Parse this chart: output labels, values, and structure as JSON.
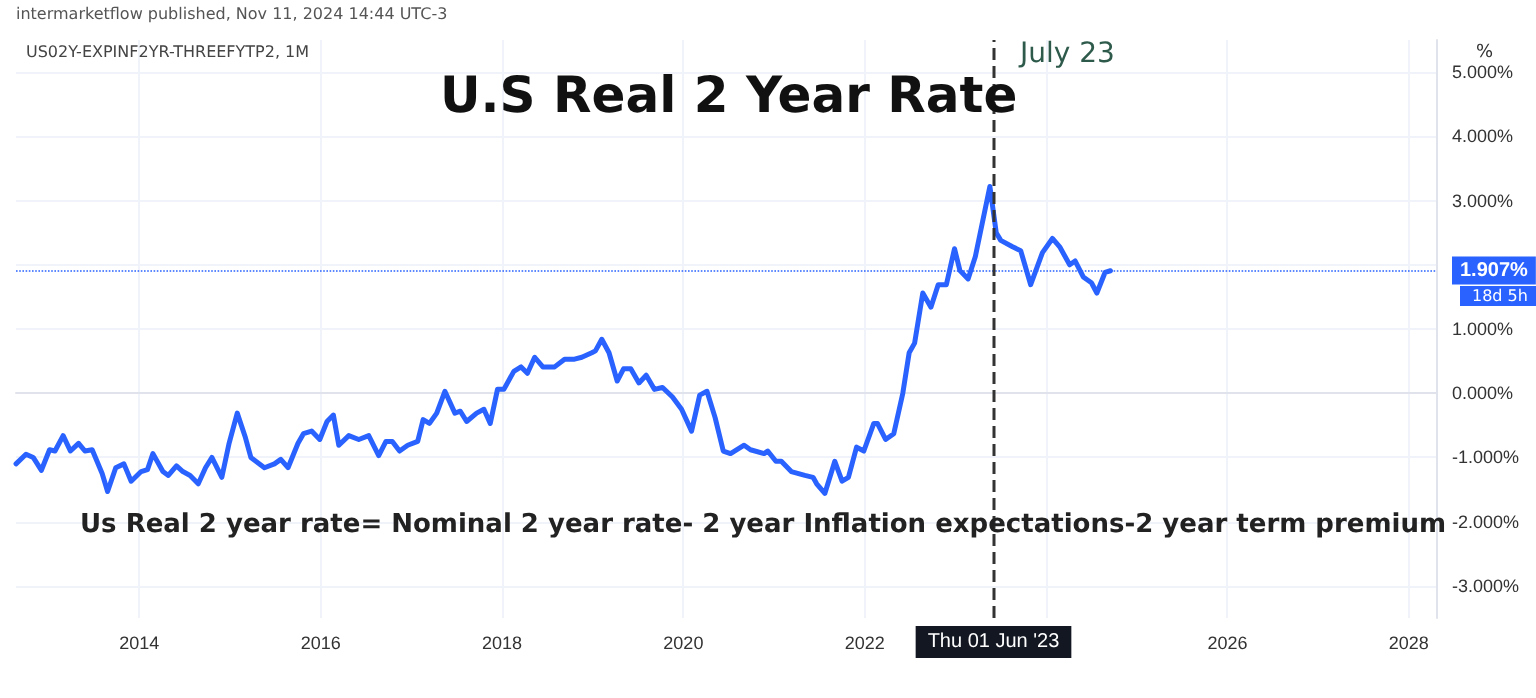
{
  "chart_data": {
    "type": "line",
    "title": "U.S Real 2 Year Rate",
    "subtitle": "US02Y-EXPINF2YR-THREEFYTP2, 1M",
    "annotations": [
      "intermarketflow published, Nov 11, 2024 14:44 UTC-3",
      "July 23",
      "Us Real 2 year rate= Nominal 2 year rate- 2 year Inflation expectations-2 year term premium",
      "18d 5h",
      "%"
    ],
    "series": [
      {
        "color": "#2962ff",
        "x": [
          2012.64,
          2012.75,
          2012.83,
          2012.92,
          2013.01,
          2013.07,
          2013.16,
          2013.24,
          2013.33,
          2013.4,
          2013.48,
          2013.59,
          2013.65,
          2013.74,
          2013.83,
          2013.91,
          2014.02,
          2014.09,
          2014.15,
          2014.26,
          2014.32,
          2014.41,
          2014.48,
          2014.56,
          2014.65,
          2014.73,
          2014.8,
          2014.91,
          2014.99,
          2015.08,
          2015.17,
          2015.23,
          2015.38,
          2015.49,
          2015.56,
          2015.64,
          2015.75,
          2015.81,
          2015.9,
          2015.99,
          2016.07,
          2016.14,
          2016.2,
          2016.31,
          2016.42,
          2016.53,
          2016.64,
          2016.72,
          2016.79,
          2016.87,
          2016.96,
          2017.07,
          2017.13,
          2017.2,
          2017.28,
          2017.37,
          2017.48,
          2017.54,
          2017.61,
          2017.72,
          2017.8,
          2017.87,
          2017.95,
          2018.02,
          2018.13,
          2018.21,
          2018.28,
          2018.36,
          2018.45,
          2018.58,
          2018.69,
          2018.8,
          2018.88,
          2018.99,
          2019.03,
          2019.1,
          2019.18,
          2019.27,
          2019.34,
          2019.42,
          2019.51,
          2019.59,
          2019.68,
          2019.77,
          2019.88,
          2019.98,
          2020.09,
          2020.18,
          2020.26,
          2020.35,
          2020.44,
          2020.52,
          2020.67,
          2020.74,
          2020.89,
          2020.93,
          2021.02,
          2021.08,
          2021.19,
          2021.34,
          2021.43,
          2021.47,
          2021.56,
          2021.67,
          2021.75,
          2021.82,
          2021.91,
          2021.99,
          2022.1,
          2022.14,
          2022.23,
          2022.32,
          2022.42,
          2022.49,
          2022.55,
          2022.64,
          2022.73,
          2022.81,
          2022.9,
          2022.99,
          2023.05,
          2023.14,
          2023.22,
          2023.38,
          2023.45,
          2023.5,
          2023.63,
          2023.72,
          2023.83,
          2023.96,
          2024.07,
          2024.15,
          2024.26,
          2024.32,
          2024.41,
          2024.5,
          2024.56,
          2024.65,
          2024.71
        ],
        "values": [
          -1.1,
          -0.95,
          -1.0,
          -1.2,
          -0.88,
          -0.9,
          -0.66,
          -0.9,
          -0.78,
          -0.9,
          -0.88,
          -1.25,
          -1.53,
          -1.16,
          -1.1,
          -1.37,
          -1.22,
          -1.19,
          -0.94,
          -1.22,
          -1.28,
          -1.13,
          -1.22,
          -1.28,
          -1.41,
          -1.16,
          -1.0,
          -1.31,
          -0.78,
          -0.31,
          -0.69,
          -1.0,
          -1.16,
          -1.1,
          -1.03,
          -1.16,
          -0.78,
          -0.63,
          -0.59,
          -0.72,
          -0.44,
          -0.34,
          -0.81,
          -0.66,
          -0.72,
          -0.66,
          -0.97,
          -0.75,
          -0.75,
          -0.9,
          -0.81,
          -0.75,
          -0.41,
          -0.47,
          -0.31,
          0.03,
          -0.31,
          -0.28,
          -0.44,
          -0.31,
          -0.25,
          -0.47,
          0.06,
          0.06,
          0.34,
          0.41,
          0.31,
          0.56,
          0.41,
          0.41,
          0.53,
          0.53,
          0.56,
          0.63,
          0.66,
          0.84,
          0.63,
          0.19,
          0.38,
          0.38,
          0.16,
          0.28,
          0.06,
          0.09,
          -0.06,
          -0.25,
          -0.59,
          -0.03,
          0.03,
          -0.38,
          -0.9,
          -0.94,
          -0.81,
          -0.88,
          -0.94,
          -0.9,
          -1.06,
          -1.06,
          -1.22,
          -1.28,
          -1.31,
          -1.41,
          -1.56,
          -1.06,
          -1.37,
          -1.31,
          -0.84,
          -0.9,
          -0.47,
          -0.47,
          -0.72,
          -0.63,
          0.0,
          0.63,
          0.78,
          1.56,
          1.34,
          1.69,
          1.69,
          2.25,
          1.91,
          1.78,
          2.13,
          3.22,
          2.5,
          2.38,
          2.28,
          2.22,
          1.69,
          2.19,
          2.41,
          2.28,
          2.0,
          2.06,
          1.81,
          1.72,
          1.56,
          1.88,
          1.907
        ]
      }
    ],
    "xlim": [
      2012.64,
      2028.3
    ],
    "xticks": [
      2014,
      2016,
      2018,
      2020,
      2022,
      {
        "value": 2024,
        "label": null
      },
      2026,
      2028
    ],
    "ylim": [
      -3.5,
      5.5
    ],
    "yticks": [
      {
        "value": -3,
        "label": "-3.000%"
      },
      {
        "value": -2,
        "label": "-2.000%"
      },
      {
        "value": -1,
        "label": "-1.000%"
      },
      {
        "value": 0,
        "label": "0.000%"
      },
      {
        "value": 1,
        "label": "1.000%"
      },
      {
        "value": 2,
        "label": null
      },
      {
        "value": 3,
        "label": "3.000%"
      },
      {
        "value": 4,
        "label": "4.000%"
      },
      {
        "value": 5,
        "label": "5.000%"
      }
    ],
    "ref_lines": [
      {
        "axis": "y",
        "value": 1.907,
        "label": "1.907%",
        "color": "#2962ff",
        "line_style": "dotted"
      },
      {
        "axis": "x",
        "value": 2023.42,
        "label": "Thu 01 Jun '23",
        "color": "#333333",
        "line_style": "dashed"
      }
    ],
    "grid": true,
    "marker": "none",
    "line_style": "solid"
  }
}
